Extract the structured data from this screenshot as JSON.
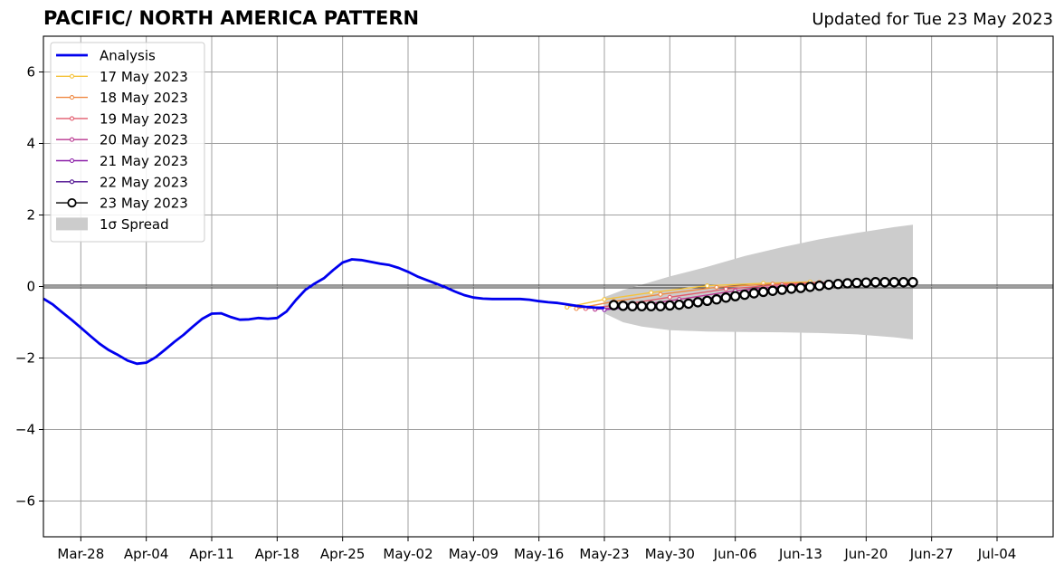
{
  "chart_data": {
    "type": "line",
    "title": "PACIFIC/ NORTH AMERICA PATTERN",
    "subtitle": "Updated for Tue 23 May 2023",
    "xlabel": "",
    "ylabel": "",
    "xlim": [
      "2023-03-24",
      "2023-07-10"
    ],
    "ylim": [
      -7,
      7
    ],
    "grid": true,
    "legend_position": "top-left",
    "x_ticks": [
      "Mar-28",
      "Apr-04",
      "Apr-11",
      "Apr-18",
      "Apr-25",
      "May-02",
      "May-09",
      "May-16",
      "May-23",
      "May-30",
      "Jun-06",
      "Jun-13",
      "Jun-20",
      "Jun-27",
      "Jul-04"
    ],
    "x_tick_dates": [
      "2023-03-28",
      "2023-04-04",
      "2023-04-11",
      "2023-04-18",
      "2023-04-25",
      "2023-05-02",
      "2023-05-09",
      "2023-05-16",
      "2023-05-23",
      "2023-05-30",
      "2023-06-06",
      "2023-06-13",
      "2023-06-20",
      "2023-06-27",
      "2023-07-04"
    ],
    "y_ticks": [
      -6,
      -4,
      -2,
      0,
      2,
      4,
      6
    ],
    "y_tick_labels": [
      "−6",
      "−4",
      "−2",
      "0",
      "2",
      "4",
      "6"
    ],
    "zero_line": true,
    "analysis": {
      "name": "Analysis",
      "color": "#0000ee",
      "x": [
        "2023-03-24",
        "2023-03-25",
        "2023-03-26",
        "2023-03-27",
        "2023-03-28",
        "2023-03-29",
        "2023-03-30",
        "2023-03-31",
        "2023-04-01",
        "2023-04-02",
        "2023-04-03",
        "2023-04-04",
        "2023-04-05",
        "2023-04-06",
        "2023-04-07",
        "2023-04-08",
        "2023-04-09",
        "2023-04-10",
        "2023-04-11",
        "2023-04-12",
        "2023-04-13",
        "2023-04-14",
        "2023-04-15",
        "2023-04-16",
        "2023-04-17",
        "2023-04-18",
        "2023-04-19",
        "2023-04-20",
        "2023-04-21",
        "2023-04-22",
        "2023-04-23",
        "2023-04-24",
        "2023-04-25",
        "2023-04-26",
        "2023-04-27",
        "2023-04-28",
        "2023-04-29",
        "2023-04-30",
        "2023-05-01",
        "2023-05-02",
        "2023-05-03",
        "2023-05-04",
        "2023-05-05",
        "2023-05-06",
        "2023-05-07",
        "2023-05-08",
        "2023-05-09",
        "2023-05-10",
        "2023-05-11",
        "2023-05-12",
        "2023-05-13",
        "2023-05-14",
        "2023-05-15",
        "2023-05-16",
        "2023-05-17",
        "2023-05-18",
        "2023-05-19",
        "2023-05-20",
        "2023-05-21",
        "2023-05-22",
        "2023-05-23"
      ],
      "y": [
        -0.34,
        -0.5,
        -0.72,
        -0.93,
        -1.15,
        -1.38,
        -1.6,
        -1.78,
        -1.92,
        -2.07,
        -2.16,
        -2.13,
        -1.98,
        -1.77,
        -1.55,
        -1.35,
        -1.12,
        -0.9,
        -0.76,
        -0.75,
        -0.85,
        -0.93,
        -0.92,
        -0.88,
        -0.9,
        -0.88,
        -0.7,
        -0.38,
        -0.1,
        0.08,
        0.23,
        0.46,
        0.67,
        0.76,
        0.74,
        0.69,
        0.64,
        0.6,
        0.52,
        0.41,
        0.28,
        0.18,
        0.08,
        -0.02,
        -0.14,
        -0.24,
        -0.31,
        -0.34,
        -0.35,
        -0.35,
        -0.35,
        -0.35,
        -0.37,
        -0.41,
        -0.44,
        -0.46,
        -0.5,
        -0.54,
        -0.57,
        -0.59,
        -0.6
      ]
    },
    "series": [
      {
        "name": "17 May 2023",
        "color": "#f5c33c",
        "x": [
          "2023-05-19",
          "2023-05-23",
          "2023-05-28",
          "2023-06-03",
          "2023-06-09",
          "2023-06-14"
        ],
        "y": [
          -0.58,
          -0.36,
          -0.17,
          0.02,
          0.09,
          0.13
        ]
      },
      {
        "name": "18 May 2023",
        "color": "#ef8a43",
        "x": [
          "2023-05-20",
          "2023-05-24",
          "2023-05-29",
          "2023-06-04",
          "2023-06-10",
          "2023-06-15"
        ],
        "y": [
          -0.62,
          -0.42,
          -0.22,
          -0.02,
          0.07,
          0.12
        ]
      },
      {
        "name": "19 May 2023",
        "color": "#e25b6d",
        "x": [
          "2023-05-21",
          "2023-05-25",
          "2023-05-30",
          "2023-06-05",
          "2023-06-11",
          "2023-06-16"
        ],
        "y": [
          -0.62,
          -0.5,
          -0.3,
          -0.07,
          0.05,
          0.12
        ]
      },
      {
        "name": "20 May 2023",
        "color": "#b93690",
        "x": [
          "2023-05-22",
          "2023-05-26",
          "2023-05-31",
          "2023-06-06",
          "2023-06-12",
          "2023-06-17"
        ],
        "y": [
          -0.64,
          -0.55,
          -0.36,
          -0.12,
          0.03,
          0.1
        ]
      },
      {
        "name": "21 May 2023",
        "color": "#8b1ea8",
        "x": [
          "2023-05-23",
          "2023-05-27",
          "2023-06-01",
          "2023-06-07",
          "2023-06-13",
          "2023-06-18"
        ],
        "y": [
          -0.65,
          -0.55,
          -0.42,
          -0.16,
          0.0,
          0.08
        ]
      },
      {
        "name": "22 May 2023",
        "color": "#4c0d8f",
        "x": [
          "2023-05-24",
          "2023-05-28",
          "2023-06-02",
          "2023-06-08",
          "2023-06-14",
          "2023-06-19"
        ],
        "y": [
          -0.6,
          -0.55,
          -0.45,
          -0.22,
          -0.02,
          0.06
        ]
      },
      {
        "name": "23 May 2023",
        "color": "#000000",
        "markers": "open-circle",
        "x": [
          "2023-05-24",
          "2023-05-25",
          "2023-05-26",
          "2023-05-27",
          "2023-05-28",
          "2023-05-29",
          "2023-05-30",
          "2023-05-31",
          "2023-06-01",
          "2023-06-02",
          "2023-06-03",
          "2023-06-04",
          "2023-06-05",
          "2023-06-06",
          "2023-06-07",
          "2023-06-08",
          "2023-06-09",
          "2023-06-10",
          "2023-06-11",
          "2023-06-12",
          "2023-06-13",
          "2023-06-14",
          "2023-06-15",
          "2023-06-16",
          "2023-06-17",
          "2023-06-18",
          "2023-06-19",
          "2023-06-20",
          "2023-06-21",
          "2023-06-22",
          "2023-06-23",
          "2023-06-24",
          "2023-06-25"
        ],
        "y": [
          -0.52,
          -0.54,
          -0.55,
          -0.55,
          -0.55,
          -0.55,
          -0.53,
          -0.51,
          -0.48,
          -0.44,
          -0.4,
          -0.36,
          -0.31,
          -0.27,
          -0.23,
          -0.19,
          -0.15,
          -0.12,
          -0.09,
          -0.06,
          -0.04,
          -0.01,
          0.02,
          0.05,
          0.07,
          0.09,
          0.1,
          0.11,
          0.12,
          0.12,
          0.12,
          0.12,
          0.12
        ]
      }
    ],
    "spread": {
      "name": "1σ Spread",
      "color": "#cccccc",
      "x": [
        "2023-05-23",
        "2023-05-25",
        "2023-05-27",
        "2023-05-30",
        "2023-06-03",
        "2023-06-07",
        "2023-06-11",
        "2023-06-15",
        "2023-06-19",
        "2023-06-23",
        "2023-06-25"
      ],
      "upper": [
        -0.3,
        -0.1,
        0.05,
        0.28,
        0.55,
        0.85,
        1.1,
        1.32,
        1.5,
        1.66,
        1.73
      ],
      "lower": [
        -0.75,
        -1.0,
        -1.12,
        -1.22,
        -1.26,
        -1.27,
        -1.28,
        -1.3,
        -1.34,
        -1.42,
        -1.48
      ]
    },
    "legend": [
      "Analysis",
      "17 May 2023",
      "18 May 2023",
      "19 May 2023",
      "20 May 2023",
      "21 May 2023",
      "22 May 2023",
      "23 May 2023",
      "1σ Spread"
    ]
  }
}
